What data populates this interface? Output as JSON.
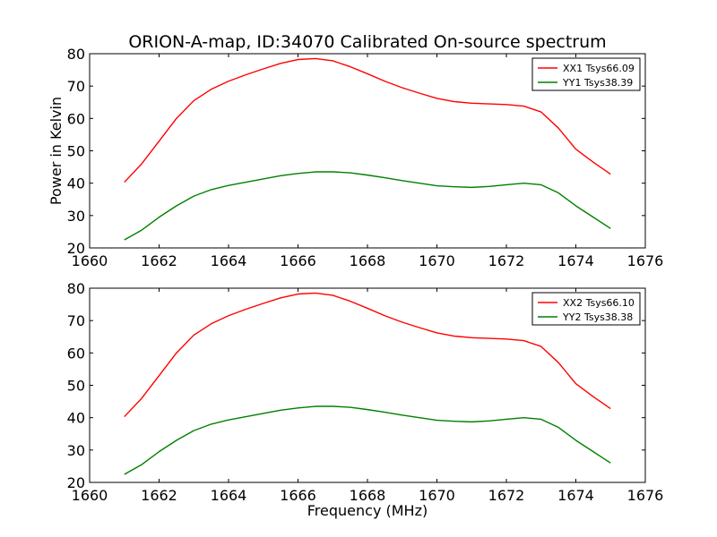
{
  "title": "ORION-A-map, ID:34070 Calibrated On-source spectrum",
  "chart_data": [
    {
      "type": "line",
      "ylabel": "Power in Kelvin",
      "xlabel": "",
      "xlim": [
        1660,
        1676
      ],
      "ylim": [
        20,
        80
      ],
      "xticks": [
        1660,
        1662,
        1664,
        1666,
        1668,
        1670,
        1672,
        1674,
        1676
      ],
      "yticks": [
        20,
        30,
        40,
        50,
        60,
        70,
        80
      ],
      "legend_position": "top-right",
      "series": [
        {
          "name": "XX1 Tsys66.09",
          "color": "#ff0000",
          "x": [
            1661.0,
            1661.5,
            1662.0,
            1662.5,
            1663.0,
            1663.5,
            1664.0,
            1664.5,
            1665.0,
            1665.5,
            1666.0,
            1666.5,
            1667.0,
            1667.5,
            1668.0,
            1668.5,
            1669.0,
            1669.5,
            1670.0,
            1670.5,
            1671.0,
            1671.5,
            1672.0,
            1672.5,
            1673.0,
            1673.5,
            1674.0,
            1674.5,
            1675.0
          ],
          "y": [
            40.3,
            46.0,
            53.0,
            60.0,
            65.5,
            69.0,
            71.5,
            73.5,
            75.3,
            77.0,
            78.2,
            78.5,
            77.8,
            76.0,
            73.8,
            71.5,
            69.5,
            67.8,
            66.2,
            65.2,
            64.7,
            64.5,
            64.3,
            63.8,
            62.0,
            57.0,
            50.5,
            46.5,
            42.8
          ]
        },
        {
          "name": "YY1 Tsys38.39",
          "color": "#008000",
          "x": [
            1661.0,
            1661.5,
            1662.0,
            1662.5,
            1663.0,
            1663.5,
            1664.0,
            1664.5,
            1665.0,
            1665.5,
            1666.0,
            1666.5,
            1667.0,
            1667.5,
            1668.0,
            1668.5,
            1669.0,
            1669.5,
            1670.0,
            1670.5,
            1671.0,
            1671.5,
            1672.0,
            1672.5,
            1673.0,
            1673.5,
            1674.0,
            1674.5,
            1675.0
          ],
          "y": [
            22.5,
            25.5,
            29.5,
            33.0,
            36.0,
            38.0,
            39.3,
            40.3,
            41.3,
            42.3,
            43.0,
            43.5,
            43.5,
            43.2,
            42.5,
            41.7,
            40.8,
            40.0,
            39.2,
            38.9,
            38.7,
            39.0,
            39.5,
            40.0,
            39.5,
            37.0,
            33.0,
            29.5,
            26.0
          ]
        }
      ]
    },
    {
      "type": "line",
      "ylabel": "",
      "xlabel": "Frequency (MHz)",
      "xlim": [
        1660,
        1676
      ],
      "ylim": [
        20,
        80
      ],
      "xticks": [
        1660,
        1662,
        1664,
        1666,
        1668,
        1670,
        1672,
        1674,
        1676
      ],
      "yticks": [
        20,
        30,
        40,
        50,
        60,
        70,
        80
      ],
      "legend_position": "top-right",
      "series": [
        {
          "name": "XX2 Tsys66.10",
          "color": "#ff0000",
          "x": [
            1661.0,
            1661.5,
            1662.0,
            1662.5,
            1663.0,
            1663.5,
            1664.0,
            1664.5,
            1665.0,
            1665.5,
            1666.0,
            1666.5,
            1667.0,
            1667.5,
            1668.0,
            1668.5,
            1669.0,
            1669.5,
            1670.0,
            1670.5,
            1671.0,
            1671.5,
            1672.0,
            1672.5,
            1673.0,
            1673.5,
            1674.0,
            1674.5,
            1675.0
          ],
          "y": [
            40.3,
            46.0,
            53.0,
            60.0,
            65.5,
            69.0,
            71.5,
            73.5,
            75.3,
            77.0,
            78.2,
            78.5,
            77.8,
            76.0,
            73.8,
            71.5,
            69.5,
            67.8,
            66.2,
            65.2,
            64.7,
            64.5,
            64.3,
            63.8,
            62.0,
            57.0,
            50.5,
            46.5,
            42.8
          ]
        },
        {
          "name": "YY2 Tsys38.38",
          "color": "#008000",
          "x": [
            1661.0,
            1661.5,
            1662.0,
            1662.5,
            1663.0,
            1663.5,
            1664.0,
            1664.5,
            1665.0,
            1665.5,
            1666.0,
            1666.5,
            1667.0,
            1667.5,
            1668.0,
            1668.5,
            1669.0,
            1669.5,
            1670.0,
            1670.5,
            1671.0,
            1671.5,
            1672.0,
            1672.5,
            1673.0,
            1673.5,
            1674.0,
            1674.5,
            1675.0
          ],
          "y": [
            22.5,
            25.5,
            29.5,
            33.0,
            36.0,
            38.0,
            39.3,
            40.3,
            41.3,
            42.3,
            43.0,
            43.5,
            43.5,
            43.2,
            42.5,
            41.7,
            40.8,
            40.0,
            39.2,
            38.9,
            38.7,
            39.0,
            39.5,
            40.0,
            39.5,
            37.0,
            33.0,
            29.5,
            26.0
          ]
        }
      ]
    }
  ]
}
